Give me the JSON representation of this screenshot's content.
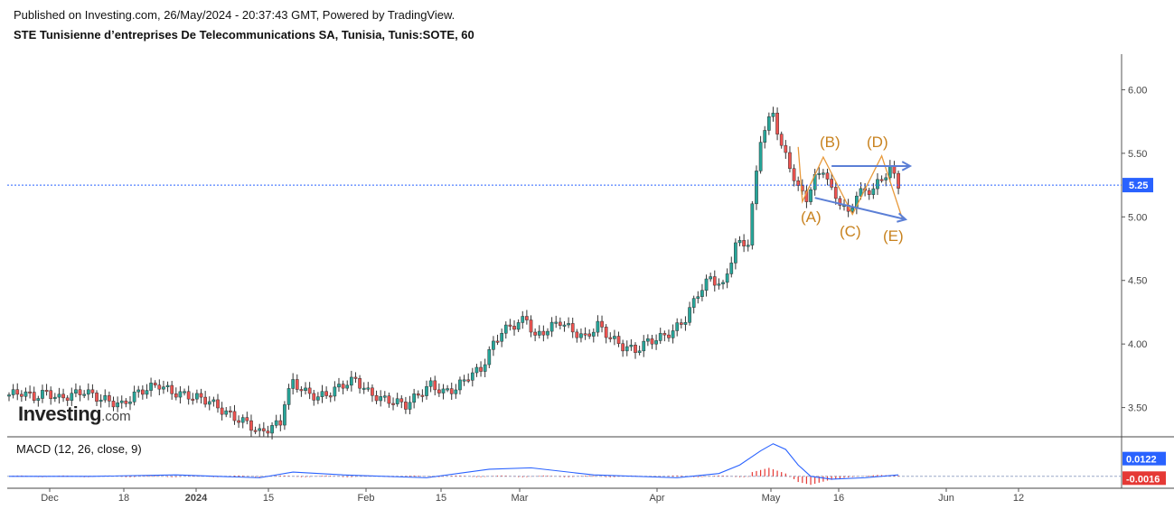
{
  "header": {
    "published": "Published on Investing.com, 26/May/2024 - 20:37:43 GMT, Powered by TradingView.",
    "title": "STE Tunisienne d’entreprises De Telecommunications SA, Tunisia, Tunis:SOTE, 60"
  },
  "brand": {
    "name": "Investing",
    "suffix": ".com"
  },
  "macd_label": "MACD (12, 26, close, 9)",
  "colors": {
    "up": "#26a69a",
    "down": "#ef5350",
    "macd": "#2962ff",
    "hist": "#e53935",
    "elliott": "#e89a3c",
    "arrow": "#5b7fd6",
    "price_line": "#2962ff"
  },
  "chart_data": [
    {
      "type": "candlestick",
      "title": "STE Tunisienne d’entreprises De Telecommunications SA, Tunisia, Tunis:SOTE, 60",
      "y_ticks": [
        "6.00",
        "5.50",
        "5.00",
        "4.50",
        "4.00",
        "3.50"
      ],
      "ylim": [
        3.27,
        6.28
      ],
      "x_ticks": [
        "Dec",
        "18",
        "2024",
        "15",
        "Feb",
        "15",
        "Mar",
        "Apr",
        "May",
        "16",
        "Jun",
        "12"
      ],
      "last_price": "5.25",
      "close_path": [
        [
          0,
          3.6
        ],
        [
          3,
          3.62
        ],
        [
          6,
          3.58
        ],
        [
          9,
          3.62
        ],
        [
          12,
          3.57
        ],
        [
          15,
          3.6
        ],
        [
          18,
          3.63
        ],
        [
          21,
          3.58
        ],
        [
          24,
          3.55
        ],
        [
          27,
          3.52
        ],
        [
          30,
          3.6
        ],
        [
          33,
          3.65
        ],
        [
          36,
          3.68
        ],
        [
          39,
          3.62
        ],
        [
          42,
          3.6
        ],
        [
          45,
          3.58
        ],
        [
          48,
          3.55
        ],
        [
          51,
          3.48
        ],
        [
          54,
          3.42
        ],
        [
          57,
          3.38
        ],
        [
          60,
          3.3
        ],
        [
          63,
          3.35
        ],
        [
          65,
          3.38
        ],
        [
          66,
          3.55
        ],
        [
          68,
          3.7
        ],
        [
          71,
          3.62
        ],
        [
          74,
          3.58
        ],
        [
          77,
          3.62
        ],
        [
          80,
          3.68
        ],
        [
          83,
          3.72
        ],
        [
          86,
          3.62
        ],
        [
          89,
          3.57
        ],
        [
          92,
          3.55
        ],
        [
          95,
          3.52
        ],
        [
          98,
          3.6
        ],
        [
          101,
          3.68
        ],
        [
          104,
          3.62
        ],
        [
          107,
          3.65
        ],
        [
          110,
          3.75
        ],
        [
          113,
          3.8
        ],
        [
          116,
          4.0
        ],
        [
          118,
          4.1
        ],
        [
          121,
          4.15
        ],
        [
          124,
          4.2
        ],
        [
          126,
          4.05
        ],
        [
          129,
          4.12
        ],
        [
          132,
          4.18
        ],
        [
          135,
          4.1
        ],
        [
          138,
          4.05
        ],
        [
          141,
          4.15
        ],
        [
          144,
          4.05
        ],
        [
          147,
          3.98
        ],
        [
          150,
          3.95
        ],
        [
          153,
          4.02
        ],
        [
          156,
          4.05
        ],
        [
          159,
          4.1
        ],
        [
          162,
          4.2
        ],
        [
          165,
          4.4
        ],
        [
          168,
          4.52
        ],
        [
          171,
          4.45
        ],
        [
          174,
          4.78
        ],
        [
          177,
          4.8
        ],
        [
          180,
          5.62
        ],
        [
          183,
          5.82
        ],
        [
          185,
          5.55
        ],
        [
          187,
          5.4
        ],
        [
          189,
          5.22
        ],
        [
          191,
          5.15
        ],
        [
          193,
          5.3
        ],
        [
          195,
          5.38
        ],
        [
          197,
          5.2
        ],
        [
          199,
          5.12
        ],
        [
          201,
          5.02
        ],
        [
          203,
          5.18
        ],
        [
          205,
          5.2
        ],
        [
          207,
          5.22
        ],
        [
          209,
          5.3
        ],
        [
          211,
          5.38
        ],
        [
          213,
          5.25
        ]
      ],
      "elliott_labels": [
        "(A)",
        "(B)",
        "(C)",
        "(D)",
        "(E)"
      ],
      "elliott_points": [
        [
          190,
          5.12
        ],
        [
          195,
          5.47
        ],
        [
          202,
          5.02
        ],
        [
          209,
          5.48
        ],
        [
          214,
          4.98
        ]
      ]
    },
    {
      "type": "line",
      "title": "MACD (12, 26, close, 9)",
      "y_ticks": [
        "0.0122",
        "-0.0016"
      ],
      "macd_path": [
        [
          0,
          0.0
        ],
        [
          20,
          0.0
        ],
        [
          40,
          0.001
        ],
        [
          60,
          -0.001
        ],
        [
          68,
          0.003
        ],
        [
          80,
          0.001
        ],
        [
          100,
          -0.001
        ],
        [
          115,
          0.005
        ],
        [
          125,
          0.006
        ],
        [
          140,
          0.001
        ],
        [
          160,
          -0.001
        ],
        [
          170,
          0.002
        ],
        [
          175,
          0.008
        ],
        [
          180,
          0.018
        ],
        [
          183,
          0.023
        ],
        [
          186,
          0.019
        ],
        [
          189,
          0.008
        ],
        [
          192,
          0.0
        ],
        [
          197,
          -0.002
        ],
        [
          205,
          -0.001
        ],
        [
          213,
          0.001
        ]
      ],
      "hist_path": [
        [
          178,
          0.003
        ],
        [
          182,
          0.006
        ],
        [
          186,
          0.002
        ],
        [
          189,
          -0.004
        ],
        [
          192,
          -0.006
        ],
        [
          196,
          -0.003
        ],
        [
          200,
          -0.001
        ],
        [
          208,
          0.001
        ],
        [
          213,
          0.0005
        ]
      ]
    }
  ]
}
